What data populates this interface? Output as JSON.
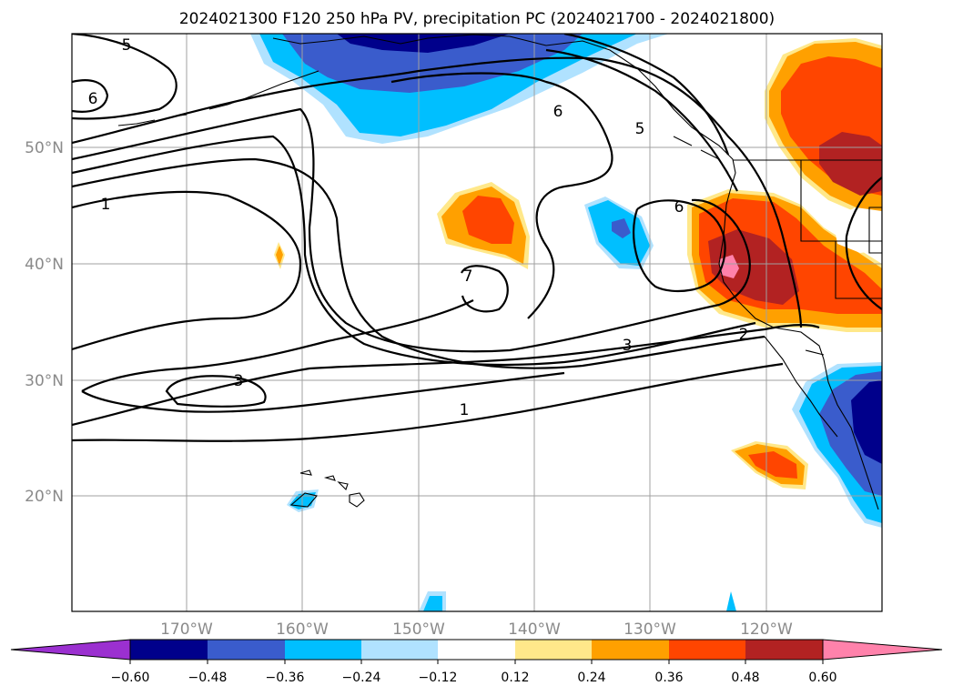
{
  "title": "2024021300 F120 250 hPa PV, precipitation PC (2024021700 - 2024021800)",
  "lat_labels": [
    "50°N",
    "40°N",
    "30°N",
    "20°N"
  ],
  "lon_labels": [
    "170°W",
    "160°W",
    "150°W",
    "140°W",
    "130°W",
    "120°W"
  ],
  "colorbar": {
    "tick_labels": [
      "−0.60",
      "−0.48",
      "−0.36",
      "−0.24",
      "−0.12",
      "0.12",
      "0.24",
      "0.36",
      "0.48",
      "0.60"
    ],
    "colors": [
      "#9b30d0",
      "#00008b",
      "#3a5ccc",
      "#00bfff",
      "#b0e2ff",
      "#ffffff",
      "#ffe88a",
      "#ffa000",
      "#ff4500",
      "#b22222",
      "#ff82ab"
    ]
  },
  "contour_labels": {
    "c5_top": "5",
    "c6_left": "6",
    "c1_left": "1",
    "c3_left": "3",
    "c1_mid": "1",
    "c7": "7",
    "c6_top": "6",
    "c5_coast": "5",
    "c6_east": "6",
    "c3_mid": "3",
    "c2": "2"
  },
  "fill_colors": {
    "navy": "#00008b",
    "blue": "#3a5ccc",
    "cyan": "#00bfff",
    "lightblue": "#b0e2ff",
    "yellow": "#ffe88a",
    "orange": "#ffa000",
    "red": "#ff4500",
    "darkred": "#b22222",
    "pink": "#ff82ab"
  }
}
